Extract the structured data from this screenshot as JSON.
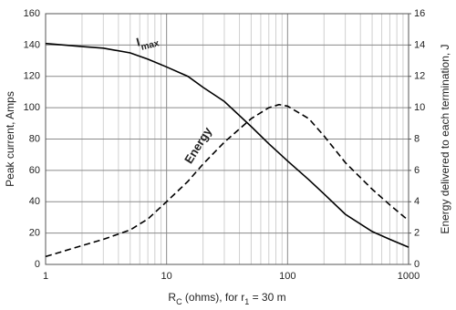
{
  "chart_data": {
    "type": "line",
    "xlabel": [
      {
        "text": "R"
      },
      {
        "text": "C",
        "sub": true
      },
      {
        "text": " (ohms), for r"
      },
      {
        "text": "1",
        "sub": true
      },
      {
        "text": " = 30 m"
      }
    ],
    "ylabel": "Peak current, Amps",
    "y2label": "Energy delivered to each termination, J",
    "xscale": "log",
    "xlim": [
      1,
      1000
    ],
    "xticks": [
      1,
      10,
      100,
      1000
    ],
    "xminor": [
      2,
      3,
      4,
      5,
      6,
      7,
      8,
      9,
      20,
      30,
      40,
      50,
      60,
      70,
      80,
      90,
      200,
      300,
      400,
      500,
      600,
      700,
      800,
      900
    ],
    "ylim": [
      0,
      160
    ],
    "yticks": [
      0,
      20,
      40,
      60,
      80,
      100,
      120,
      140,
      160
    ],
    "y2lim": [
      0,
      16
    ],
    "y2ticks": [
      0,
      2,
      4,
      6,
      8,
      10,
      12,
      14,
      16
    ],
    "grid": true,
    "x": [
      1,
      2,
      3,
      5,
      7,
      10,
      15,
      20,
      30,
      50,
      70,
      85,
      100,
      150,
      200,
      300,
      500,
      700,
      1000
    ],
    "series": [
      {
        "color": "#000000",
        "dash": false,
        "axis": "y",
        "values": [
          141,
          139,
          138,
          135,
          131,
          126,
          120,
          113,
          104,
          88,
          77,
          71,
          66,
          54,
          45,
          32,
          21,
          16,
          11
        ]
      },
      {
        "color": "#000000",
        "dash": true,
        "axis": "y2",
        "values": [
          0.5,
          1.2,
          1.6,
          2.2,
          2.9,
          4.0,
          5.3,
          6.4,
          7.8,
          9.3,
          10.0,
          10.2,
          10.1,
          9.3,
          8.2,
          6.5,
          4.8,
          3.8,
          2.8
        ]
      }
    ],
    "annotations": [
      {
        "text": "I",
        "sub": "max"
      },
      {
        "text": "Energy"
      }
    ]
  }
}
